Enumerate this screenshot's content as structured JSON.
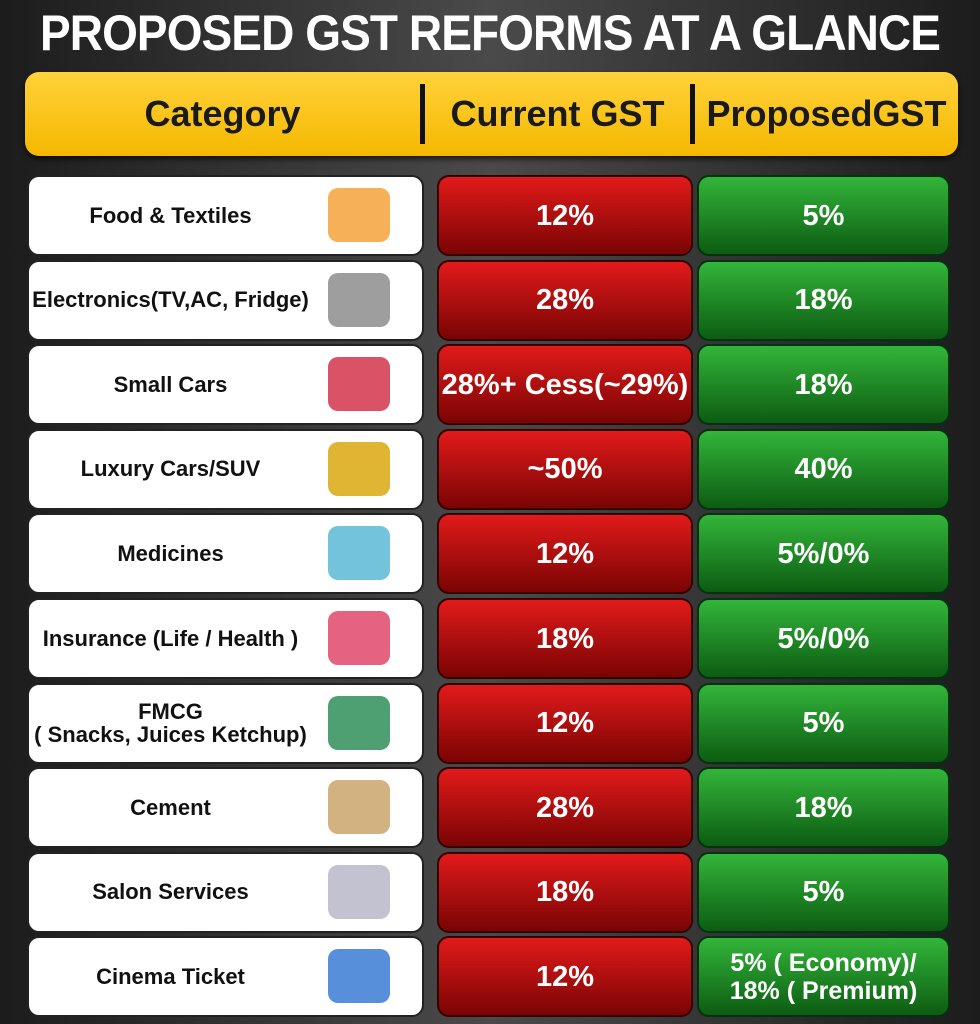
{
  "title": "PROPOSED GST REFORMS AT A GLANCE",
  "table": {
    "header": [
      "Category",
      "Current GST",
      "ProposedGST"
    ],
    "rows": [
      [
        "Food & Textiles",
        "12%",
        "5%"
      ],
      [
        "Electronics(TV,AC, Fridge)",
        "28%",
        "18%"
      ],
      [
        "Small Cars",
        "28%+ Cess(~29%)",
        "18%"
      ],
      [
        "Luxury Cars/SUV",
        "~50%",
        "40%"
      ],
      [
        "Medicines",
        "12%",
        "5%/0%"
      ],
      [
        "Insurance (Life / Health )",
        "18%",
        "5%/0%"
      ],
      [
        "FMCG\n( Snacks, Juices Ketchup)",
        "12%",
        "5%"
      ],
      [
        "Cement",
        "28%",
        "18%"
      ],
      [
        "Salon Services",
        "18%",
        "5%"
      ],
      [
        "Cinema Ticket",
        "12%",
        "5% ( Economy)/\n18% ( Premium)"
      ]
    ]
  }
}
